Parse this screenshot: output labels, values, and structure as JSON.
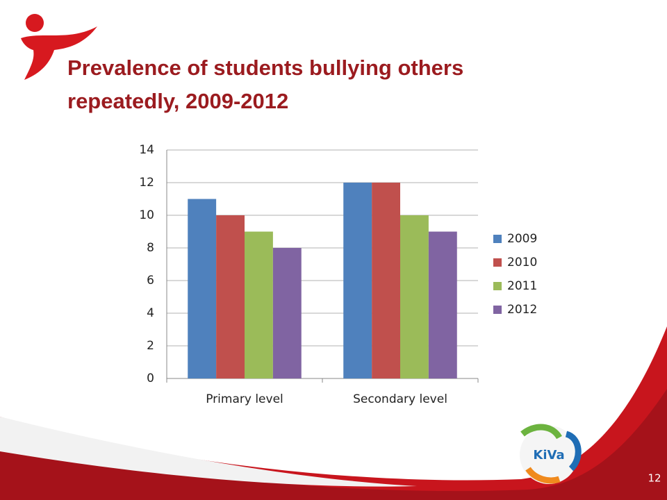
{
  "chart_data": {
    "type": "bar",
    "title": "Prevalence of students bullying others repeatedly, 2009-2012",
    "categories": [
      "Primary level",
      "Secondary level"
    ],
    "series": [
      {
        "name": "2009",
        "color": "#4f81bd",
        "values": [
          11,
          12
        ]
      },
      {
        "name": "2010",
        "color": "#c0504d",
        "values": [
          10,
          12
        ]
      },
      {
        "name": "2011",
        "color": "#9bbb59",
        "values": [
          9,
          10
        ]
      },
      {
        "name": "2012",
        "color": "#8064a2",
        "values": [
          8,
          9
        ]
      }
    ],
    "ylim": [
      0,
      14
    ],
    "yticks": [
      0,
      2,
      4,
      6,
      8,
      10,
      12,
      14
    ],
    "grid": true,
    "legend": "right"
  },
  "logo_text": "KiVa",
  "page_number": "12"
}
